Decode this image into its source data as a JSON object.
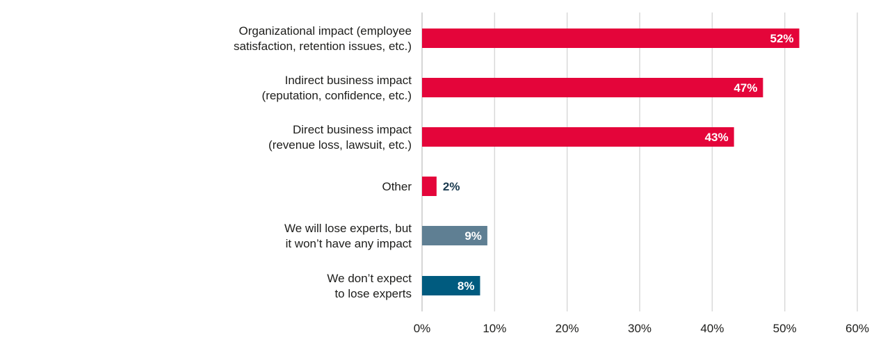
{
  "chart_data": {
    "type": "bar",
    "orientation": "horizontal",
    "categories": [
      [
        "Organizational impact (employee",
        "satisfaction, retention issues, etc.)"
      ],
      [
        "Indirect business impact",
        "(reputation, confidence, etc.)"
      ],
      [
        "Direct business impact",
        "(revenue loss, lawsuit, etc.)"
      ],
      [
        "Other"
      ],
      [
        "We will lose experts, but",
        "it won’t have any impact"
      ],
      [
        "We don’t expect",
        "to lose experts"
      ]
    ],
    "values": [
      52,
      47,
      43,
      2,
      9,
      8
    ],
    "value_labels": [
      "52%",
      "47%",
      "43%",
      "2%",
      "9%",
      "8%"
    ],
    "bar_colors": [
      "#e4053a",
      "#e4053a",
      "#e4053a",
      "#e4053a",
      "#5f7f93",
      "#005b7f"
    ],
    "xlim": [
      0,
      60
    ],
    "xticks": [
      0,
      10,
      20,
      30,
      40,
      50,
      60
    ],
    "xtick_labels": [
      "0%",
      "10%",
      "20%",
      "30%",
      "40%",
      "50%",
      "60%"
    ],
    "grid": true,
    "title": "",
    "xlabel": "",
    "ylabel": ""
  }
}
